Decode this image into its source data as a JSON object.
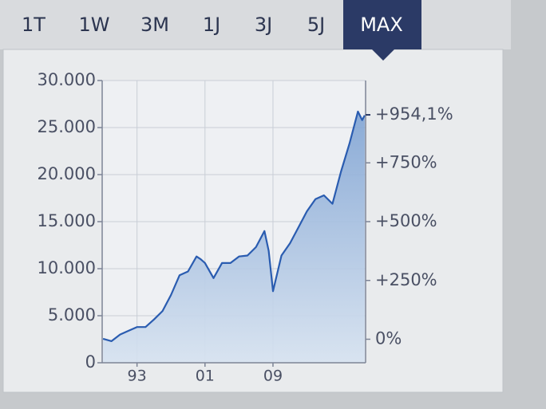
{
  "tabs": [
    "1T",
    "1W",
    "3M",
    "1J",
    "3J",
    "5J",
    "MAX"
  ],
  "active_tab": 6,
  "chart_data": {
    "type": "area",
    "color": "#2a5cb0",
    "grid": true,
    "x": [
      1989,
      1990,
      1991,
      1992,
      1993,
      1994,
      1995,
      1996,
      1997,
      1998,
      1999,
      2000,
      2000.5,
      2001,
      2002,
      2003,
      2004,
      2005,
      2006,
      2007,
      2008,
      2008.5,
      2009,
      2010,
      2011,
      2012,
      2013,
      2014,
      2015,
      2016,
      2017,
      2018,
      2019,
      2019.5,
      2019.8
    ],
    "values": [
      2550,
      2300,
      3000,
      3400,
      3800,
      3800,
      4600,
      5500,
      7200,
      9300,
      9700,
      11300,
      11000,
      10600,
      9000,
      10600,
      10600,
      11300,
      11400,
      12300,
      14000,
      11900,
      7600,
      11400,
      12700,
      14400,
      16100,
      17400,
      17800,
      16900,
      20300,
      23300,
      26700,
      25800,
      26300
    ],
    "xlim": [
      1988.9,
      2019.9
    ],
    "xticks": [
      {
        "value": 1993,
        "label": "93"
      },
      {
        "value": 2001,
        "label": "01"
      },
      {
        "value": 2009,
        "label": "09"
      }
    ],
    "ylim": [
      0,
      30000
    ],
    "yticks": [
      0,
      {
        "value": 5000,
        "label": "5.000"
      },
      {
        "value": 10000,
        "label": "10.000"
      },
      {
        "value": 15000,
        "label": "15.000"
      },
      {
        "value": 20000,
        "label": "20.000"
      },
      {
        "value": 25000,
        "label": "25.000"
      },
      {
        "value": 30000,
        "label": "30.000"
      }
    ],
    "y2lim": [
      -100,
      1100
    ],
    "y2ticks": [
      {
        "value": 0,
        "label": "0%"
      },
      {
        "value": 250,
        "label": "+250%"
      },
      {
        "value": 500,
        "label": "+500%"
      },
      {
        "value": 750,
        "label": "+750%"
      }
    ],
    "last_change": {
      "value": 954.1,
      "label": "+954,1%"
    }
  }
}
